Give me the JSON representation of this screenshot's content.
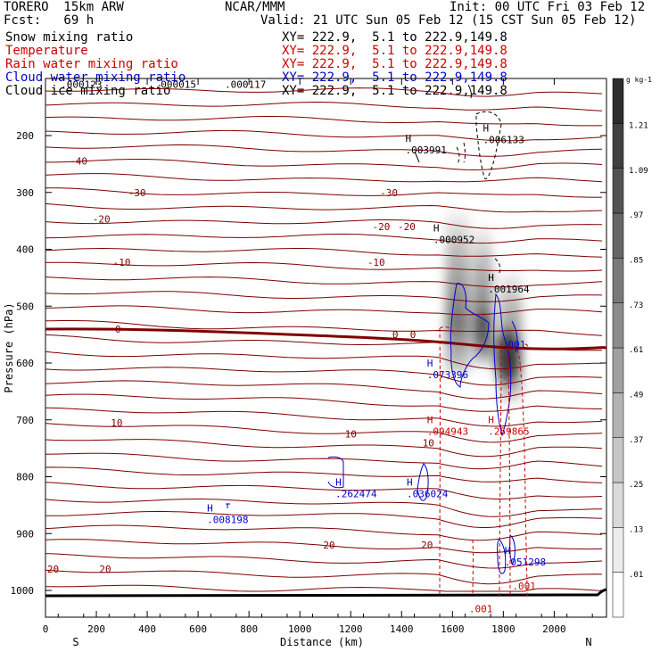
{
  "header": {
    "model": "TORERO  15km ARW",
    "org": "NCAR/MMM",
    "init": "Init: 00 UTC Fri 03 Feb 12",
    "fcst": "Fcst:   69 h",
    "valid": "Valid: 21 UTC Sun 05 Feb 12 (15 CST Sun 05 Feb 12)",
    "fields": [
      {
        "name": "Snow mixing ratio",
        "xy": "XY= 222.9,  5.1 to 222.9,149.8",
        "color": "#000000"
      },
      {
        "name": "Temperature",
        "xy": "XY= 222.9,  5.1 to 222.9,149.8",
        "color": "#cc0000"
      },
      {
        "name": "Rain water mixing ratio",
        "xy": "XY= 222.9,  5.1 to 222.9,149.8",
        "color": "#cc0000"
      },
      {
        "name": "Cloud water mixing ratio",
        "xy": "XY= 222.9,  5.1 to 222.9,149.8",
        "color": "#0000cc"
      },
      {
        "name": "Cloud ice mixing ratio",
        "xy": "XY= 222.9,  5.1 to 222.9,149.8",
        "color": "#000000"
      }
    ]
  },
  "chart_data": {
    "type": "cross-section",
    "xlabel": "Distance (km)",
    "ylabel": "Pressure (hPa)",
    "xlim": [
      0,
      2200
    ],
    "ylim": [
      1050,
      100
    ],
    "x_ticks": [
      0,
      200,
      400,
      600,
      800,
      1000,
      1200,
      1400,
      1600,
      1800,
      2000
    ],
    "y_ticks": [
      200,
      300,
      400,
      500,
      600,
      700,
      800,
      900,
      1000
    ],
    "endpoints": {
      "left": "S",
      "right": "N"
    },
    "colorbar": {
      "units": "g kg-1",
      "levels": [
        0.01,
        0.13,
        0.25,
        0.37,
        0.49,
        0.61,
        0.73,
        0.85,
        0.97,
        1.09,
        1.21
      ],
      "labels": [
        ".01",
        ".13",
        ".25",
        ".37",
        ".49",
        ".61",
        ".73",
        ".85",
        ".97",
        "1.09",
        "1.21"
      ]
    },
    "temperature_labels": [
      {
        "text": "-40",
        "x": 130,
        "p": 245
      },
      {
        "text": "-30",
        "x": 360,
        "p": 300
      },
      {
        "text": "-30",
        "x": 1350,
        "p": 300
      },
      {
        "text": "-20",
        "x": 220,
        "p": 347
      },
      {
        "text": "-20",
        "x": 1320,
        "p": 360
      },
      {
        "text": "-20",
        "x": 1420,
        "p": 360
      },
      {
        "text": "-10",
        "x": 300,
        "p": 423
      },
      {
        "text": "-10",
        "x": 1300,
        "p": 423
      },
      {
        "text": "0",
        "x": 285,
        "p": 540
      },
      {
        "text": "0",
        "x": 1375,
        "p": 550
      },
      {
        "text": "0",
        "x": 1445,
        "p": 550
      },
      {
        "text": "10",
        "x": 280,
        "p": 705
      },
      {
        "text": "10",
        "x": 1200,
        "p": 725
      },
      {
        "text": "10",
        "x": 1505,
        "p": 740
      },
      {
        "text": "20",
        "x": 1115,
        "p": 920
      },
      {
        "text": "20",
        "x": 1500,
        "p": 920
      },
      {
        "text": "20",
        "x": 30,
        "p": 962
      },
      {
        "text": "20",
        "x": 235,
        "p": 962
      }
    ],
    "maxima": [
      {
        "text": ".000123",
        "x": 60,
        "p": 110,
        "color": "#000000"
      },
      {
        "text": ".000015",
        "x": 430,
        "p": 110,
        "color": "#000000"
      },
      {
        "text": ".000117",
        "x": 705,
        "p": 110,
        "color": "#000000"
      },
      {
        "text": ".003991",
        "x": 1415,
        "p": 225,
        "color": "#000000"
      },
      {
        "text": ".006133",
        "x": 1720,
        "p": 207,
        "color": "#000000"
      },
      {
        "text": ".000952",
        "x": 1525,
        "p": 383,
        "color": "#000000"
      },
      {
        "text": ".001964",
        "x": 1740,
        "p": 470,
        "color": "#000000"
      },
      {
        "text": ".001",
        "x": 1795,
        "p": 567,
        "color": "#0000cc"
      },
      {
        "text": ".073396",
        "x": 1500,
        "p": 620,
        "color": "#0000cc"
      },
      {
        "text": ".094943",
        "x": 1500,
        "p": 720,
        "color": "#cc0000"
      },
      {
        "text": ".259865",
        "x": 1740,
        "p": 720,
        "color": "#cc0000"
      },
      {
        "text": ".262474",
        "x": 1140,
        "p": 830,
        "color": "#0000cc"
      },
      {
        "text": ".036024",
        "x": 1420,
        "p": 830,
        "color": "#0000cc"
      },
      {
        "text": ".008198",
        "x": 635,
        "p": 875,
        "color": "#0000cc"
      },
      {
        "text": ".051298",
        "x": 1805,
        "p": 950,
        "color": "#0000cc"
      },
      {
        "text": ".001",
        "x": 1835,
        "p": 992,
        "color": "#cc0000"
      },
      {
        "text": ".001",
        "x": 1665,
        "p": 1032,
        "color": "#cc0000"
      }
    ]
  }
}
